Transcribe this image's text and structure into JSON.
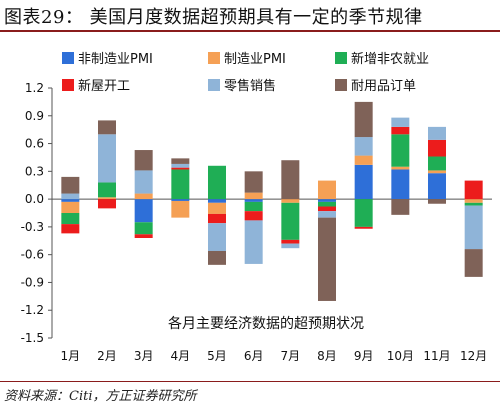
{
  "figure": {
    "title": "图表29：  美国月度数据超预期具有一定的季节规律",
    "source": "资料来源：Citi，方正证券研究所"
  },
  "chart_data": {
    "type": "bar",
    "stacked": true,
    "title": "各月主要经济数据的超预期状况",
    "xlabel": "",
    "ylabel": "",
    "categories": [
      "1月",
      "2月",
      "3月",
      "4月",
      "5月",
      "6月",
      "7月",
      "8月",
      "9月",
      "10月",
      "11月",
      "12月"
    ],
    "ylim": [
      -1.5,
      1.2
    ],
    "yticks": [
      1.2,
      0.9,
      0.6,
      0.3,
      0.0,
      -0.3,
      -0.6,
      -0.9,
      -1.2,
      -1.5
    ],
    "ytick_labels": [
      "1.2",
      "0.9",
      "0.6",
      "0.3",
      "0.0",
      "-0.3",
      "-0.6",
      "-0.9",
      "-1.2",
      "-1.5"
    ],
    "grid": false,
    "legend_position": "top",
    "series": [
      {
        "name": "非制造业PMI",
        "color": "#2e6fd8",
        "values": [
          -0.03,
          0.0,
          -0.25,
          -0.02,
          -0.04,
          -0.03,
          0.0,
          -0.03,
          0.37,
          0.32,
          0.28,
          0.0
        ]
      },
      {
        "name": "制造业PMI",
        "color": "#f5a055",
        "values": [
          -0.12,
          0.02,
          0.06,
          -0.18,
          -0.12,
          0.07,
          -0.04,
          0.2,
          0.1,
          0.03,
          0.03,
          -0.04
        ]
      },
      {
        "name": "新增非农就业",
        "color": "#1fae55",
        "values": [
          -0.12,
          0.16,
          -0.13,
          0.32,
          0.36,
          -0.1,
          -0.4,
          -0.05,
          -0.3,
          0.35,
          0.15,
          -0.03
        ]
      },
      {
        "name": "新屋开工",
        "color": "#ec1c1c",
        "values": [
          -0.1,
          -0.1,
          -0.04,
          0.02,
          -0.1,
          -0.1,
          -0.04,
          -0.05,
          -0.02,
          0.08,
          0.18,
          0.2
        ]
      },
      {
        "name": "零售销售",
        "color": "#8fb4d8",
        "values": [
          0.06,
          0.52,
          0.25,
          0.04,
          -0.3,
          -0.47,
          -0.05,
          -0.07,
          0.2,
          0.1,
          0.14,
          -0.47
        ]
      },
      {
        "name": "耐用品订单",
        "color": "#7f6258",
        "values": [
          0.18,
          0.15,
          0.22,
          0.06,
          -0.15,
          0.23,
          0.42,
          -0.9,
          0.38,
          -0.17,
          -0.05,
          -0.3
        ]
      }
    ]
  }
}
